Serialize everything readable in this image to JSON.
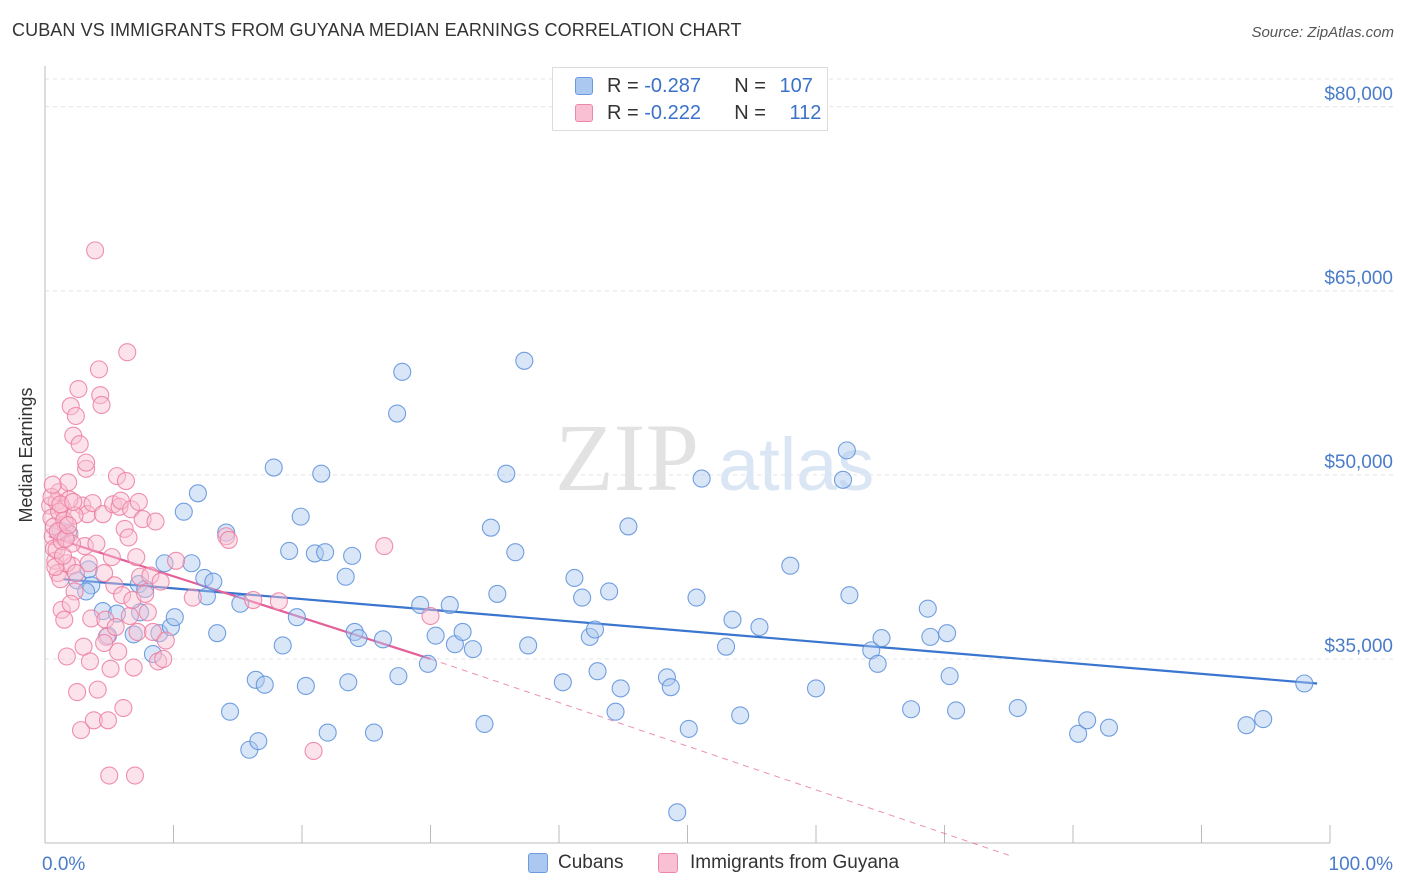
{
  "title": "CUBAN VS IMMIGRANTS FROM GUYANA MEDIAN EARNINGS CORRELATION CHART",
  "source": "Source: ZipAtlas.com",
  "watermark": {
    "zip": "ZIP",
    "atlas": "atlas"
  },
  "legend": {
    "rows": [
      {
        "r_label": "R = ",
        "r_value": "-0.287",
        "n_label": "N = ",
        "n_value": "107",
        "color": "#aac8f0",
        "border": "#6d9be0"
      },
      {
        "r_label": "R = ",
        "r_value": "-0.222",
        "n_label": "N = ",
        "n_value": "112",
        "color": "#f8c0d2",
        "border": "#ee88a8"
      }
    ]
  },
  "bottom_legend": [
    "Cubans",
    "Immigrants from Guyana"
  ],
  "chart_data": {
    "type": "scatter",
    "title": "CUBAN VS IMMIGRANTS FROM GUYANA MEDIAN EARNINGS CORRELATION CHART",
    "xlabel": "",
    "ylabel": "Median Earnings",
    "xlim": [
      0,
      100
    ],
    "ylim": [
      20000,
      83000
    ],
    "x_tick_labels": [
      "0.0%",
      "100.0%"
    ],
    "y_ticks": [
      35000,
      50000,
      65000,
      80000
    ],
    "y_tick_labels": [
      "$35,000",
      "$50,000",
      "$65,000",
      "$80,000"
    ],
    "grid": true,
    "legend_position": "top-center",
    "series": [
      {
        "name": "Cubans",
        "color": "#5b8fdb",
        "fill": "#aac8f0",
        "line_color": "#3a75cf",
        "trend": {
          "x": [
            1.4,
            99
          ],
          "y": [
            41500,
            33000
          ],
          "dashed_to": null
        },
        "points": [
          [
            1.2,
            45500
          ],
          [
            1.8,
            45300
          ],
          [
            2.5,
            41400
          ],
          [
            3.4,
            42300
          ],
          [
            3.6,
            41000
          ],
          [
            3.2,
            40500
          ],
          [
            4.5,
            38900
          ],
          [
            4.9,
            36900
          ],
          [
            5.6,
            38700
          ],
          [
            6.9,
            37000
          ],
          [
            7.4,
            38800
          ],
          [
            7.3,
            41100
          ],
          [
            7.8,
            40700
          ],
          [
            8.4,
            35400
          ],
          [
            8.9,
            37100
          ],
          [
            9.3,
            42800
          ],
          [
            9.8,
            37600
          ],
          [
            10.1,
            38400
          ],
          [
            10.8,
            47000
          ],
          [
            11.4,
            42800
          ],
          [
            11.9,
            48500
          ],
          [
            12.4,
            41600
          ],
          [
            12.6,
            40100
          ],
          [
            13.1,
            41300
          ],
          [
            13.4,
            37100
          ],
          [
            14.1,
            45300
          ],
          [
            14.4,
            30700
          ],
          [
            15.2,
            39500
          ],
          [
            15.9,
            27600
          ],
          [
            16.4,
            33300
          ],
          [
            16.6,
            28300
          ],
          [
            17.1,
            32900
          ],
          [
            17.8,
            50600
          ],
          [
            18.5,
            36100
          ],
          [
            19.0,
            43800
          ],
          [
            19.6,
            38400
          ],
          [
            19.9,
            46600
          ],
          [
            20.3,
            32800
          ],
          [
            21.0,
            43600
          ],
          [
            21.5,
            50100
          ],
          [
            21.8,
            43700
          ],
          [
            22.0,
            29000
          ],
          [
            23.4,
            41700
          ],
          [
            23.6,
            33100
          ],
          [
            23.9,
            43400
          ],
          [
            24.1,
            37200
          ],
          [
            24.4,
            36700
          ],
          [
            25.6,
            29000
          ],
          [
            26.3,
            36600
          ],
          [
            27.4,
            55000
          ],
          [
            27.8,
            58400
          ],
          [
            27.5,
            33600
          ],
          [
            29.2,
            39400
          ],
          [
            29.8,
            34600
          ],
          [
            30.4,
            36900
          ],
          [
            31.5,
            39400
          ],
          [
            31.9,
            36200
          ],
          [
            32.5,
            37200
          ],
          [
            33.3,
            35800
          ],
          [
            34.2,
            29700
          ],
          [
            34.7,
            45700
          ],
          [
            35.2,
            40300
          ],
          [
            35.9,
            50100
          ],
          [
            36.6,
            43700
          ],
          [
            37.3,
            59300
          ],
          [
            37.6,
            36100
          ],
          [
            40.3,
            33100
          ],
          [
            41.2,
            41600
          ],
          [
            41.8,
            40000
          ],
          [
            42.4,
            36800
          ],
          [
            42.8,
            37400
          ],
          [
            43.0,
            34000
          ],
          [
            43.9,
            40500
          ],
          [
            44.4,
            30700
          ],
          [
            44.8,
            32600
          ],
          [
            45.4,
            45800
          ],
          [
            48.4,
            33500
          ],
          [
            48.7,
            32700
          ],
          [
            50.1,
            29300
          ],
          [
            50.7,
            40000
          ],
          [
            51.1,
            49700
          ],
          [
            53.0,
            36000
          ],
          [
            53.5,
            38200
          ],
          [
            54.1,
            30400
          ],
          [
            55.6,
            37600
          ],
          [
            58.0,
            42600
          ],
          [
            60.0,
            32600
          ],
          [
            62.1,
            49600
          ],
          [
            62.4,
            52000
          ],
          [
            62.6,
            40200
          ],
          [
            64.3,
            35700
          ],
          [
            64.8,
            34600
          ],
          [
            65.1,
            36700
          ],
          [
            67.4,
            30900
          ],
          [
            68.7,
            39100
          ],
          [
            68.9,
            36800
          ],
          [
            70.4,
            33600
          ],
          [
            70.9,
            30800
          ],
          [
            70.2,
            37100
          ],
          [
            75.7,
            31000
          ],
          [
            80.4,
            28900
          ],
          [
            81.1,
            30000
          ],
          [
            82.8,
            29400
          ],
          [
            93.5,
            29600
          ],
          [
            94.8,
            30100
          ],
          [
            98.0,
            33000
          ],
          [
            49.2,
            22500
          ]
        ]
      },
      {
        "name": "Immigrants from Guyana",
        "color": "#ec7ca0",
        "fill": "#f8c0d2",
        "line_color": "#e4609a",
        "trend": {
          "x": [
            0.3,
            30
          ],
          "y": [
            45000,
            35000
          ],
          "dashed_to": [
            75,
            19000
          ]
        },
        "points": [
          [
            0.4,
            47500
          ],
          [
            0.5,
            46500
          ],
          [
            0.6,
            45000
          ],
          [
            0.7,
            44000
          ],
          [
            0.8,
            43000
          ],
          [
            0.9,
            47800
          ],
          [
            1.0,
            42000
          ],
          [
            1.1,
            48600
          ],
          [
            1.2,
            41500
          ],
          [
            1.3,
            39000
          ],
          [
            1.4,
            47200
          ],
          [
            1.5,
            38200
          ],
          [
            1.6,
            46000
          ],
          [
            1.7,
            35200
          ],
          [
            1.8,
            49400
          ],
          [
            1.9,
            45200
          ],
          [
            2.0,
            55600
          ],
          [
            2.1,
            42600
          ],
          [
            2.2,
            53200
          ],
          [
            2.3,
            40500
          ],
          [
            2.4,
            54800
          ],
          [
            2.5,
            32300
          ],
          [
            2.6,
            57000
          ],
          [
            2.7,
            52500
          ],
          [
            2.8,
            29200
          ],
          [
            2.9,
            47500
          ],
          [
            3.0,
            36000
          ],
          [
            3.1,
            44200
          ],
          [
            3.2,
            50500
          ],
          [
            3.3,
            46800
          ],
          [
            3.4,
            42800
          ],
          [
            3.5,
            34800
          ],
          [
            3.6,
            38300
          ],
          [
            3.7,
            47700
          ],
          [
            3.8,
            30000
          ],
          [
            3.9,
            68300
          ],
          [
            4.0,
            44400
          ],
          [
            4.1,
            32500
          ],
          [
            4.2,
            58600
          ],
          [
            4.3,
            56500
          ],
          [
            4.4,
            55700
          ],
          [
            4.5,
            46800
          ],
          [
            4.6,
            42000
          ],
          [
            4.7,
            38200
          ],
          [
            4.8,
            36800
          ],
          [
            4.9,
            30000
          ],
          [
            5.0,
            25500
          ],
          [
            5.1,
            34200
          ],
          [
            5.2,
            43300
          ],
          [
            5.3,
            47600
          ],
          [
            5.4,
            41000
          ],
          [
            5.5,
            37600
          ],
          [
            5.6,
            49900
          ],
          [
            5.7,
            35600
          ],
          [
            5.8,
            47400
          ],
          [
            5.9,
            47900
          ],
          [
            6.0,
            40200
          ],
          [
            6.1,
            31000
          ],
          [
            6.2,
            45600
          ],
          [
            6.3,
            49500
          ],
          [
            6.4,
            60000
          ],
          [
            6.5,
            44900
          ],
          [
            6.6,
            38500
          ],
          [
            6.7,
            47200
          ],
          [
            6.8,
            39800
          ],
          [
            6.9,
            34300
          ],
          [
            7.0,
            25500
          ],
          [
            7.1,
            43300
          ],
          [
            7.2,
            37200
          ],
          [
            7.3,
            47800
          ],
          [
            7.4,
            41700
          ],
          [
            7.6,
            46400
          ],
          [
            7.8,
            40300
          ],
          [
            8.0,
            38800
          ],
          [
            8.2,
            41800
          ],
          [
            8.4,
            37200
          ],
          [
            8.6,
            46200
          ],
          [
            8.8,
            34800
          ],
          [
            9.0,
            41300
          ],
          [
            9.2,
            35000
          ],
          [
            0.5,
            48200
          ],
          [
            0.7,
            45800
          ],
          [
            0.9,
            43900
          ],
          [
            1.1,
            47000
          ],
          [
            1.3,
            44600
          ],
          [
            1.5,
            46300
          ],
          [
            1.7,
            42800
          ],
          [
            1.9,
            48000
          ],
          [
            2.1,
            44400
          ],
          [
            2.3,
            46700
          ],
          [
            0.6,
            49200
          ],
          [
            0.8,
            42500
          ],
          [
            1.0,
            45400
          ],
          [
            1.2,
            47600
          ],
          [
            1.4,
            43400
          ],
          [
            1.6,
            44800
          ],
          [
            1.8,
            45900
          ],
          [
            2.0,
            39500
          ],
          [
            2.2,
            47800
          ],
          [
            2.4,
            42000
          ],
          [
            14.1,
            45000
          ],
          [
            14.3,
            44700
          ],
          [
            16.2,
            39800
          ],
          [
            18.2,
            39700
          ],
          [
            20.9,
            27500
          ],
          [
            26.4,
            44200
          ],
          [
            30.0,
            38500
          ],
          [
            9.4,
            36500
          ],
          [
            10.2,
            43000
          ],
          [
            11.5,
            40000
          ],
          [
            4.6,
            36300
          ],
          [
            3.2,
            51000
          ]
        ]
      }
    ]
  }
}
